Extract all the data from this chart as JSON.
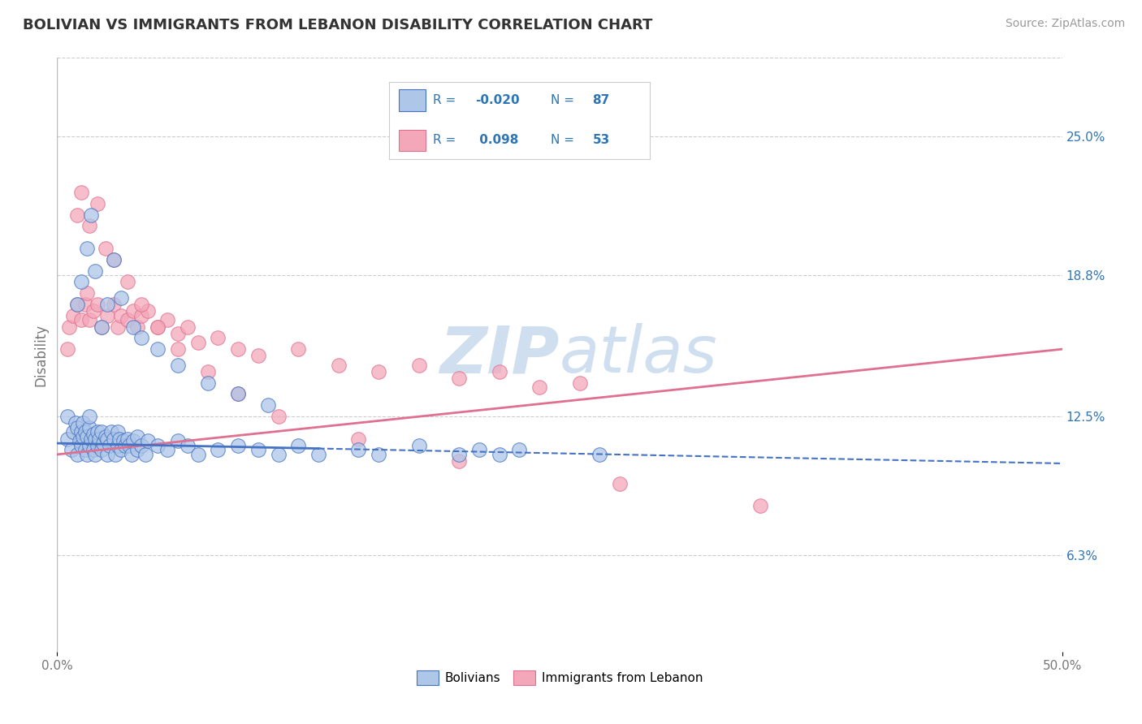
{
  "title": "BOLIVIAN VS IMMIGRANTS FROM LEBANON DISABILITY CORRELATION CHART",
  "source": "Source: ZipAtlas.com",
  "ylabel": "Disability",
  "y_tick_labels": [
    "6.3%",
    "12.5%",
    "18.8%",
    "25.0%"
  ],
  "y_tick_values": [
    0.063,
    0.125,
    0.188,
    0.25
  ],
  "xlim": [
    0.0,
    0.5
  ],
  "ylim": [
    0.02,
    0.285
  ],
  "bolivian_color": "#aec6e8",
  "lebanon_color": "#f4a7b9",
  "trend_blue": "#4472c4",
  "trend_pink": "#e07090",
  "legend_text_color": "#2e75b6",
  "watermark_color": "#d0dff0",
  "bolivian_x": [
    0.005,
    0.005,
    0.007,
    0.008,
    0.009,
    0.01,
    0.01,
    0.011,
    0.012,
    0.012,
    0.013,
    0.013,
    0.014,
    0.014,
    0.015,
    0.015,
    0.016,
    0.016,
    0.016,
    0.017,
    0.018,
    0.018,
    0.019,
    0.019,
    0.02,
    0.02,
    0.021,
    0.022,
    0.022,
    0.023,
    0.024,
    0.025,
    0.025,
    0.026,
    0.027,
    0.028,
    0.029,
    0.03,
    0.03,
    0.031,
    0.032,
    0.033,
    0.034,
    0.035,
    0.036,
    0.037,
    0.038,
    0.04,
    0.04,
    0.042,
    0.044,
    0.045,
    0.05,
    0.055,
    0.06,
    0.065,
    0.07,
    0.08,
    0.09,
    0.1,
    0.11,
    0.12,
    0.13,
    0.15,
    0.16,
    0.18,
    0.2,
    0.21,
    0.22,
    0.23,
    0.27,
    0.01,
    0.012,
    0.015,
    0.017,
    0.019,
    0.022,
    0.025,
    0.028,
    0.032,
    0.038,
    0.042,
    0.05,
    0.06,
    0.075,
    0.09,
    0.105
  ],
  "bolivian_y": [
    0.115,
    0.125,
    0.11,
    0.118,
    0.122,
    0.108,
    0.12,
    0.114,
    0.112,
    0.118,
    0.116,
    0.122,
    0.11,
    0.118,
    0.108,
    0.116,
    0.112,
    0.12,
    0.125,
    0.115,
    0.11,
    0.117,
    0.108,
    0.115,
    0.112,
    0.118,
    0.115,
    0.11,
    0.118,
    0.113,
    0.116,
    0.108,
    0.115,
    0.112,
    0.118,
    0.115,
    0.108,
    0.112,
    0.118,
    0.115,
    0.11,
    0.114,
    0.112,
    0.115,
    0.112,
    0.108,
    0.114,
    0.11,
    0.116,
    0.112,
    0.108,
    0.114,
    0.112,
    0.11,
    0.114,
    0.112,
    0.108,
    0.11,
    0.112,
    0.11,
    0.108,
    0.112,
    0.108,
    0.11,
    0.108,
    0.112,
    0.108,
    0.11,
    0.108,
    0.11,
    0.108,
    0.175,
    0.185,
    0.2,
    0.215,
    0.19,
    0.165,
    0.175,
    0.195,
    0.178,
    0.165,
    0.16,
    0.155,
    0.148,
    0.14,
    0.135,
    0.13
  ],
  "lebanon_x": [
    0.005,
    0.006,
    0.008,
    0.01,
    0.012,
    0.014,
    0.015,
    0.016,
    0.018,
    0.02,
    0.022,
    0.025,
    0.028,
    0.03,
    0.032,
    0.035,
    0.038,
    0.04,
    0.042,
    0.045,
    0.05,
    0.055,
    0.06,
    0.065,
    0.07,
    0.08,
    0.09,
    0.1,
    0.12,
    0.14,
    0.16,
    0.18,
    0.2,
    0.22,
    0.24,
    0.26,
    0.01,
    0.012,
    0.016,
    0.02,
    0.024,
    0.028,
    0.035,
    0.042,
    0.05,
    0.06,
    0.075,
    0.09,
    0.11,
    0.15,
    0.2,
    0.28,
    0.35
  ],
  "lebanon_y": [
    0.155,
    0.165,
    0.17,
    0.175,
    0.168,
    0.175,
    0.18,
    0.168,
    0.172,
    0.175,
    0.165,
    0.17,
    0.175,
    0.165,
    0.17,
    0.168,
    0.172,
    0.165,
    0.17,
    0.172,
    0.165,
    0.168,
    0.162,
    0.165,
    0.158,
    0.16,
    0.155,
    0.152,
    0.155,
    0.148,
    0.145,
    0.148,
    0.142,
    0.145,
    0.138,
    0.14,
    0.215,
    0.225,
    0.21,
    0.22,
    0.2,
    0.195,
    0.185,
    0.175,
    0.165,
    0.155,
    0.145,
    0.135,
    0.125,
    0.115,
    0.105,
    0.095,
    0.085
  ],
  "trend_blue_start_x": 0.0,
  "trend_blue_solid_end_x": 0.13,
  "trend_blue_start_y": 0.113,
  "trend_blue_end_y": 0.104,
  "trend_pink_start_x": 0.0,
  "trend_pink_end_x": 0.5,
  "trend_pink_start_y": 0.108,
  "trend_pink_end_y": 0.155
}
